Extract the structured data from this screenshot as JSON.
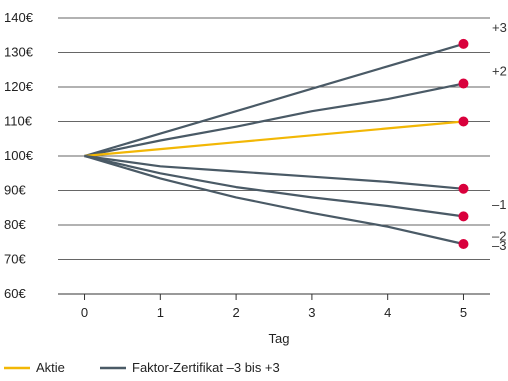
{
  "chart_data": {
    "type": "line",
    "xlabel": "Tag",
    "ylabel": "",
    "x_ticks": [
      0,
      1,
      2,
      3,
      4,
      5
    ],
    "y_ticks": [
      60,
      70,
      80,
      90,
      100,
      110,
      120,
      130,
      140
    ],
    "y_tick_labels": [
      "60€",
      "70€",
      "80€",
      "90€",
      "100€",
      "110€",
      "120€",
      "130€",
      "140€"
    ],
    "xlim": [
      -0.35,
      5.35
    ],
    "ylim": [
      60,
      140
    ],
    "grid": "horizontal",
    "legend_position": "bottom-left",
    "legend": [
      {
        "label": "Aktie",
        "color": "#f2b705"
      },
      {
        "label": "Faktor-Zertifikat –3 bis +3",
        "color": "#4a5a66"
      }
    ],
    "series": [
      {
        "leverage_label": "+3",
        "color": "#4a5a66",
        "x": [
          0,
          1,
          2,
          3,
          4,
          5
        ],
        "y": [
          100,
          106.5,
          113,
          119.5,
          126,
          132.5
        ]
      },
      {
        "leverage_label": "+2",
        "color": "#4a5a66",
        "x": [
          0,
          1,
          2,
          3,
          4,
          5
        ],
        "y": [
          100,
          104.5,
          108.5,
          113,
          116.5,
          121
        ]
      },
      {
        "leverage_label": "",
        "legend_ref": "Aktie",
        "color": "#f2b705",
        "x": [
          0,
          1,
          2,
          3,
          4,
          5
        ],
        "y": [
          100,
          102,
          104,
          106,
          108,
          110
        ]
      },
      {
        "leverage_label": "–1",
        "color": "#4a5a66",
        "x": [
          0,
          1,
          2,
          3,
          4,
          5
        ],
        "y": [
          100,
          97,
          95.5,
          94,
          92.5,
          90.5
        ]
      },
      {
        "leverage_label": "–2",
        "color": "#4a5a66",
        "x": [
          0,
          1,
          2,
          3,
          4,
          5
        ],
        "y": [
          100,
          95,
          91,
          88,
          85.5,
          82.5
        ]
      },
      {
        "leverage_label": "–3",
        "color": "#4a5a66",
        "x": [
          0,
          1,
          2,
          3,
          4,
          5
        ],
        "y": [
          100,
          93.5,
          88,
          83.5,
          79.5,
          74.5
        ]
      }
    ],
    "end_marker_color": "#d9003c"
  }
}
